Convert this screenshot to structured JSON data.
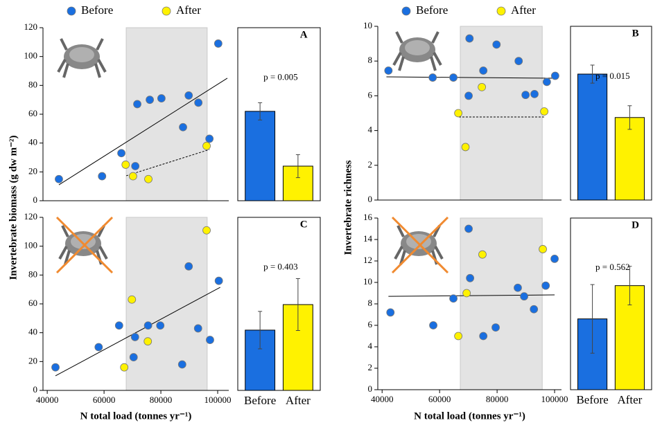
{
  "chart_data": [
    {
      "type": "scatter",
      "legend": true,
      "ylabel": "Invertebrate biomass (g dw m⁻²)",
      "xlim": [
        38500,
        103900
      ],
      "ylim": [
        0,
        120
      ],
      "yticks": [
        0,
        20,
        40,
        60,
        80,
        100,
        120
      ],
      "highlight": [
        67800,
        96300
      ],
      "series": [
        {
          "name": "Before",
          "color": "#1a6fe0",
          "x": [
            44100,
            59300,
            66100,
            71000,
            71700,
            76100,
            80200,
            89800,
            87800,
            93200,
            97100,
            100200
          ],
          "values": [
            15,
            17,
            33,
            24,
            67,
            70,
            71,
            73,
            51,
            68,
            43,
            109
          ]
        },
        {
          "name": "After",
          "color": "#fff200",
          "x": [
            67600,
            70200,
            75600,
            96100
          ],
          "values": [
            25,
            17,
            15,
            38
          ]
        }
      ],
      "trendlines": [
        {
          "x": [
            44100,
            103400
          ],
          "y": [
            11,
            85
          ],
          "dashed": false
        },
        {
          "x": [
            67800,
            97100
          ],
          "y": [
            17.3,
            35.5
          ],
          "dashed": true
        }
      ]
    },
    {
      "type": "scatter",
      "legend": true,
      "ylabel": "Invertebrate richness",
      "xlim": [
        38500,
        102400
      ],
      "ylim": [
        0,
        10
      ],
      "yticks": [
        0,
        2,
        4,
        6,
        8,
        10
      ],
      "highlight": [
        67200,
        95700
      ],
      "series": [
        {
          "name": "Before",
          "color": "#1a6fe0",
          "x": [
            42200,
            57600,
            64800,
            70400,
            70100,
            75200,
            79800,
            87500,
            89900,
            93000,
            97300,
            100200
          ],
          "values": [
            7.45,
            7.05,
            7.05,
            9.3,
            6.0,
            7.45,
            8.95,
            8.0,
            6.05,
            6.1,
            6.8,
            7.15
          ]
        },
        {
          "name": "After",
          "color": "#fff200",
          "x": [
            66500,
            74700,
            69000,
            96400
          ],
          "values": [
            5.0,
            6.5,
            3.05,
            5.1
          ]
        }
      ],
      "trendlines": [
        {
          "x": [
            41500,
            100000
          ],
          "y": [
            7.09,
            7.01
          ],
          "dashed": false
        },
        {
          "x": [
            66700,
            96400
          ],
          "y": [
            4.78,
            4.78
          ],
          "dashed": true
        }
      ]
    },
    {
      "type": "scatter",
      "xlabel": "N total load (tonnes yr⁻¹)",
      "xlim": [
        38500,
        103900
      ],
      "ylim": [
        0,
        120
      ],
      "yticks": [
        0,
        20,
        40,
        60,
        80,
        100,
        120
      ],
      "xticks": [
        40000,
        60000,
        80000,
        100000
      ],
      "highlight": [
        67800,
        96300
      ],
      "series": [
        {
          "name": "Before",
          "color": "#1a6fe0",
          "x": [
            42900,
            58100,
            65300,
            70900,
            70400,
            75500,
            79800,
            87500,
            89800,
            93100,
            97300,
            100400
          ],
          "values": [
            16,
            30,
            45,
            37,
            23,
            45,
            45,
            18,
            86,
            43,
            35,
            76
          ]
        },
        {
          "name": "After",
          "color": "#fff200",
          "x": [
            67100,
            69800,
            75400,
            96100
          ],
          "values": [
            16,
            63,
            34,
            111
          ]
        }
      ],
      "trendlines": [
        {
          "x": [
            42900,
            100900
          ],
          "y": [
            10.1,
            71.5
          ],
          "dashed": false
        }
      ]
    },
    {
      "type": "scatter",
      "xlabel": "N total load (tonnes yr⁻¹)",
      "xlim": [
        38500,
        102400
      ],
      "ylim": [
        0,
        16
      ],
      "yticks": [
        0,
        2,
        4,
        6,
        8,
        10,
        12,
        14,
        16
      ],
      "xticks": [
        40000,
        60000,
        80000,
        100000
      ],
      "highlight": [
        67200,
        95700
      ],
      "series": [
        {
          "name": "Before",
          "color": "#1a6fe0",
          "x": [
            42900,
            57800,
            64800,
            70100,
            70600,
            75200,
            79500,
            87200,
            89400,
            92800,
            96900,
            100000
          ],
          "values": [
            7.2,
            6.0,
            8.5,
            15.0,
            10.4,
            5.0,
            5.8,
            9.5,
            8.7,
            7.5,
            9.7,
            12.2
          ]
        },
        {
          "name": "After",
          "color": "#fff200",
          "x": [
            66500,
            69400,
            74900,
            95900
          ],
          "values": [
            5.0,
            9.0,
            12.6,
            13.1
          ]
        }
      ],
      "trendlines": [
        {
          "x": [
            42200,
            100000
          ],
          "y": [
            8.7,
            8.84
          ],
          "dashed": false
        }
      ]
    },
    {
      "type": "bar",
      "panel": "A",
      "annotation": "p = 0.005",
      "ylim": [
        0,
        120
      ],
      "values": [
        62,
        24
      ],
      "errors": [
        6,
        8
      ],
      "colors": [
        "#1a6fe0",
        "#fff200"
      ]
    },
    {
      "type": "bar",
      "panel": "B",
      "annotation": "p = 0.015",
      "ylim": [
        0,
        10
      ],
      "values": [
        7.25,
        4.75
      ],
      "errors": [
        0.52,
        0.68
      ],
      "colors": [
        "#1a6fe0",
        "#fff200"
      ]
    },
    {
      "type": "bar",
      "panel": "C",
      "annotation": "p = 0.403",
      "ylim": [
        0,
        120
      ],
      "categories": [
        "Before",
        "After"
      ],
      "values": [
        41.8,
        59.5
      ],
      "errors": [
        13,
        18
      ],
      "colors": [
        "#1a6fe0",
        "#fff200"
      ]
    },
    {
      "type": "bar",
      "panel": "D",
      "annotation": "p = 0.562",
      "ylim": [
        0,
        16
      ],
      "categories": [
        "Before",
        "After"
      ],
      "values": [
        6.6,
        9.7
      ],
      "errors": [
        3.2,
        1.8
      ],
      "colors": [
        "#1a6fe0",
        "#fff200"
      ]
    }
  ]
}
